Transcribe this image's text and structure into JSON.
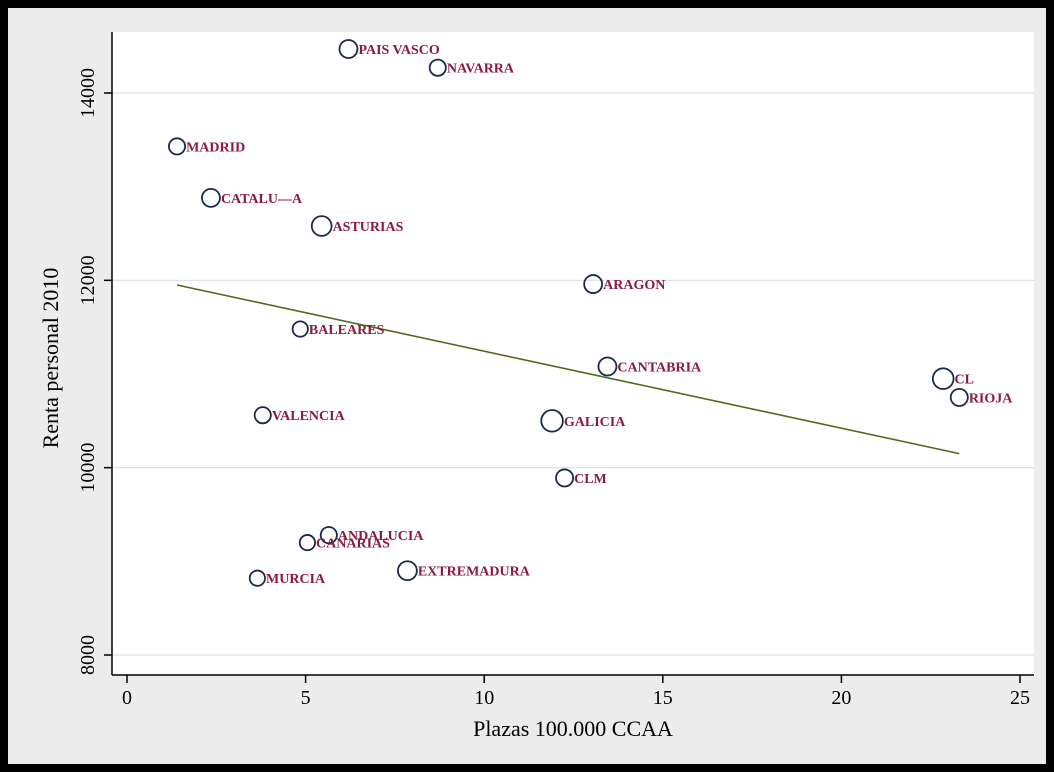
{
  "chart_data": {
    "type": "scatter",
    "xlabel": "Plazas 100.000 CCAA",
    "ylabel": "Renta personal 2010",
    "xlim": [
      0,
      25
    ],
    "ylim": [
      8000,
      14500
    ],
    "xticks": [
      0,
      5,
      10,
      15,
      20,
      25
    ],
    "yticks": [
      8000,
      10000,
      12000,
      14000
    ],
    "grid": "horizontal",
    "colors": {
      "marker_stroke": "#1b2a4a",
      "label": "#8b1a3c",
      "fit_line": "#4f6b1e",
      "grid": "#d7dfe6",
      "plot_bg": "#ffffff"
    },
    "points": [
      {
        "label": "PAIS VASCO",
        "x": 6.2,
        "y": 14470,
        "size": 1.0
      },
      {
        "label": "NAVARRA",
        "x": 8.7,
        "y": 14270,
        "size": 0.9
      },
      {
        "label": "MADRID",
        "x": 1.4,
        "y": 13430,
        "size": 0.9
      },
      {
        "label": "CATALU—A",
        "x": 2.35,
        "y": 12880,
        "size": 1.0
      },
      {
        "label": "ASTURIAS",
        "x": 5.45,
        "y": 12580,
        "size": 1.1
      },
      {
        "label": "ARAGON",
        "x": 13.05,
        "y": 11960,
        "size": 1.0
      },
      {
        "label": "BALEARES",
        "x": 4.85,
        "y": 11480,
        "size": 0.85
      },
      {
        "label": "CANTABRIA",
        "x": 13.45,
        "y": 11080,
        "size": 1.0
      },
      {
        "label": "CL",
        "x": 22.85,
        "y": 10950,
        "size": 1.15
      },
      {
        "label": "RIOJA",
        "x": 23.3,
        "y": 10750,
        "size": 0.95
      },
      {
        "label": "VALENCIA",
        "x": 3.8,
        "y": 10560,
        "size": 0.9
      },
      {
        "label": "GALICIA",
        "x": 11.9,
        "y": 10500,
        "size": 1.2
      },
      {
        "label": "CLM",
        "x": 12.25,
        "y": 9890,
        "size": 0.95
      },
      {
        "label": "ANDALUCIA",
        "x": 5.65,
        "y": 9280,
        "size": 0.9
      },
      {
        "label": "CANARIAS",
        "x": 5.05,
        "y": 9200,
        "size": 0.85
      },
      {
        "label": "EXTREMADURA",
        "x": 7.85,
        "y": 8900,
        "size": 1.05
      },
      {
        "label": "MURCIA",
        "x": 3.65,
        "y": 8820,
        "size": 0.85
      }
    ],
    "fit_line": {
      "x": [
        1.4,
        23.3
      ],
      "y": [
        11950,
        10150
      ]
    }
  }
}
